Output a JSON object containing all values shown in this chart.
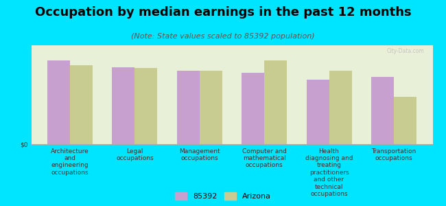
{
  "title": "Occupation by median earnings in the past 12 months",
  "subtitle": "(Note: State values scaled to 85392 population)",
  "categories": [
    "Architecture\nand\nengineering\noccupations",
    "Legal\noccupations",
    "Management\noccupations",
    "Computer and\nmathematical\noccupations",
    "Health\ndiagnosing and\ntreating\npractitioners\nand other\ntechnical\noccupations",
    "Transportation\noccupations"
  ],
  "values_85392": [
    85,
    78,
    74,
    72,
    65,
    68
  ],
  "values_arizona": [
    80,
    77,
    74,
    85,
    74,
    48
  ],
  "color_85392": "#c8a0d0",
  "color_arizona": "#c8cc90",
  "background_color": "#00e5ff",
  "plot_bg_color": "#e8f0d8",
  "legend_85392": "85392",
  "legend_arizona": "Arizona",
  "bar_width": 0.35,
  "title_fontsize": 13,
  "subtitle_fontsize": 8,
  "tick_fontsize": 6.5,
  "legend_fontsize": 8
}
